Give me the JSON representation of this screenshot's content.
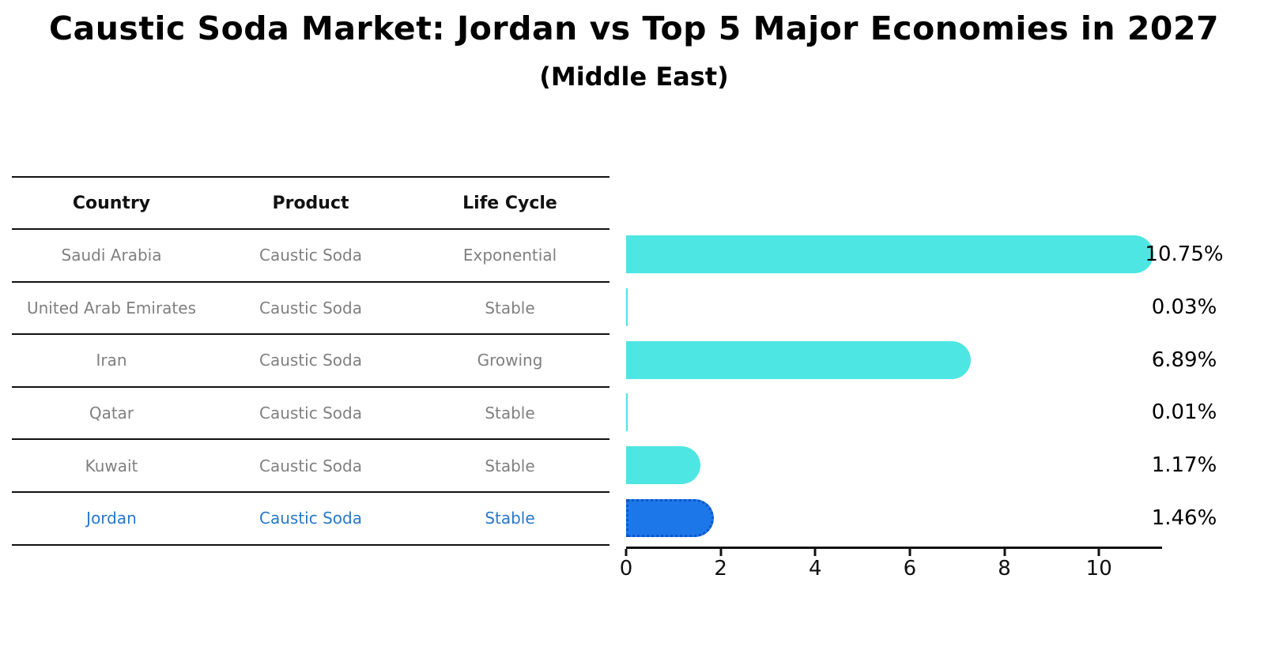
{
  "header": {
    "title": "Caustic Soda Market: Jordan vs Top 5 Major Economies in 2027",
    "subtitle": "(Middle East)"
  },
  "table": {
    "columns": [
      "Country",
      "Product",
      "Life Cycle"
    ],
    "rows": [
      {
        "country": "Saudi Arabia",
        "product": "Caustic Soda",
        "life_cycle": "Exponential",
        "highlight": false
      },
      {
        "country": "United Arab Emirates",
        "product": "Caustic Soda",
        "life_cycle": "Stable",
        "highlight": false
      },
      {
        "country": "Iran",
        "product": "Caustic Soda",
        "life_cycle": "Growing",
        "highlight": false
      },
      {
        "country": "Qatar",
        "product": "Caustic Soda",
        "life_cycle": "Stable",
        "highlight": false
      },
      {
        "country": "Kuwait",
        "product": "Caustic Soda",
        "life_cycle": "Stable",
        "highlight": false
      },
      {
        "country": "Jordan",
        "product": "Caustic Soda",
        "life_cycle": "Stable",
        "highlight": true
      }
    ]
  },
  "chart_data": {
    "type": "bar",
    "orientation": "horizontal",
    "title": "Caustic Soda Market: Jordan vs Top 5 Major Economies in 2027",
    "subtitle": "(Middle East)",
    "categories": [
      "Saudi Arabia",
      "United Arab Emirates",
      "Iran",
      "Qatar",
      "Kuwait",
      "Jordan"
    ],
    "values": [
      10.75,
      0.03,
      6.89,
      0.01,
      1.17,
      1.46
    ],
    "value_labels": [
      "10.75%",
      "0.03%",
      "6.89%",
      "0.01%",
      "1.17%",
      "1.46%"
    ],
    "xlabel": "",
    "ylabel": "",
    "xlim": [
      0,
      11.3
    ],
    "x_ticks": [
      0,
      2,
      4,
      6,
      8,
      10
    ],
    "grid": false,
    "legend": false,
    "highlight_category": "Jordan",
    "colors": {
      "bar_default": "#4DE6E2",
      "bar_highlight": "#1C78E8",
      "bar_highlight_border": "#0C55C8",
      "highlight_text": "#2878C8",
      "table_text": "#808080",
      "axis": "#111111"
    }
  }
}
